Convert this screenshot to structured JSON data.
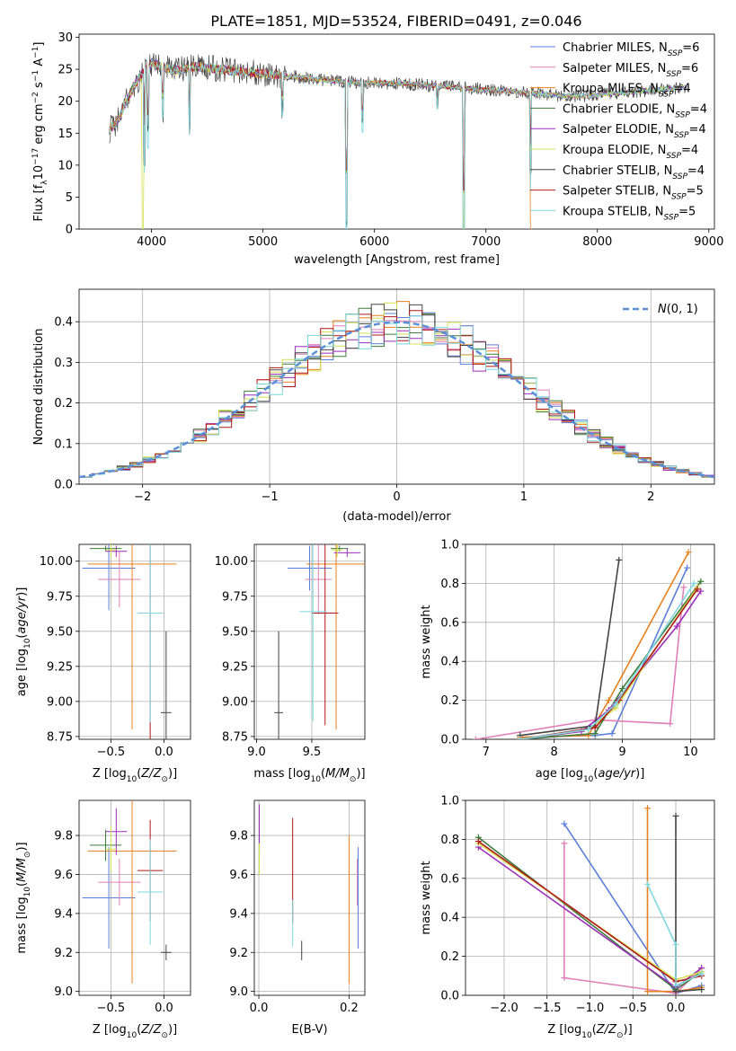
{
  "colors": [
    "#5b7fd8",
    "#e07fba",
    "#e7801e",
    "#3d7c3a",
    "#9b2fb8",
    "#d4e04f",
    "#444444",
    "#b01818",
    "#7ed8de"
  ],
  "figure_title": "PLATE=1851, MJD=53524, FIBERID=0491, z=0.046",
  "chart_data": [
    {
      "id": "spectrum",
      "type": "line",
      "title": "PLATE=1851, MJD=53524, FIBERID=0491, z=0.046",
      "xlabel": "wavelength [Angstrom, rest frame]",
      "ylabel": "Flux [f_λ 10^-17 erg cm^-2 s^-1 A^-1]",
      "xlim": [
        3350,
        9050
      ],
      "ylim": [
        0,
        30.5
      ],
      "xticks": [
        "4000",
        "5000",
        "6000",
        "7000",
        "8000",
        "9000"
      ],
      "yticks": [
        "0",
        "5",
        "10",
        "15",
        "20",
        "25",
        "30"
      ],
      "continuum_x": [
        3620,
        3700,
        3800,
        3900,
        4000,
        4100,
        4200,
        4400,
        4600,
        4800,
        5000,
        5200,
        5400,
        5600,
        5800,
        6000,
        6200,
        6400,
        6600,
        6800,
        7000,
        7200,
        7400,
        7600,
        7800,
        8000,
        8200,
        8400,
        8600,
        8800
      ],
      "continuum_y": [
        15.5,
        17,
        21,
        24,
        26,
        25.3,
        24.8,
        25.4,
        25,
        24.6,
        24.3,
        24,
        23.6,
        23.2,
        23,
        22.9,
        22.8,
        22.6,
        22.3,
        22.1,
        21.8,
        21.6,
        21.3,
        21,
        20.8,
        21,
        21.3,
        21.6,
        21.9,
        22.2
      ],
      "absorption_dips": [
        [
          3934,
          12
        ],
        [
          3969,
          10
        ],
        [
          4102,
          6
        ],
        [
          4340,
          8
        ],
        [
          5175,
          5
        ],
        [
          5750,
          20
        ],
        [
          5890,
          6
        ],
        [
          6563,
          3
        ],
        [
          6800,
          23
        ],
        [
          7400,
          12
        ]
      ],
      "legend": [
        {
          "imf": "Chabrier",
          "lib": "MILES",
          "n": "6"
        },
        {
          "imf": "Salpeter",
          "lib": "MILES",
          "n": "6"
        },
        {
          "imf": "Kroupa",
          "lib": "MILES",
          "n": "4"
        },
        {
          "imf": "Chabrier",
          "lib": "ELODIE",
          "n": "4"
        },
        {
          "imf": "Salpeter",
          "lib": "ELODIE",
          "n": "4"
        },
        {
          "imf": "Kroupa",
          "lib": "ELODIE",
          "n": "4"
        },
        {
          "imf": "Chabrier",
          "lib": "STELIB",
          "n": "4"
        },
        {
          "imf": "Salpeter",
          "lib": "STELIB",
          "n": "5"
        },
        {
          "imf": "Kroupa",
          "lib": "STELIB",
          "n": "5"
        }
      ],
      "legend_placement": "upper-right"
    },
    {
      "id": "residuals",
      "type": "histogram",
      "xlabel": "(data-model)/error",
      "ylabel": "Normed distribution",
      "xlim": [
        -2.5,
        2.5
      ],
      "ylim": [
        0,
        0.48
      ],
      "xticks": [
        "-2",
        "-1",
        "0",
        "1",
        "2"
      ],
      "yticks": [
        "0.0",
        "0.1",
        "0.2",
        "0.3",
        "0.4"
      ],
      "bin_width": 0.1,
      "reference_curve": "N(0,1)",
      "legend_placement": "upper-right",
      "grid": true
    },
    {
      "id": "age_vs_Z",
      "type": "errorbar",
      "xlabel": "Z [log10(Z/Z_sun)]",
      "ylabel": "age [log10(age/yr)]",
      "xlim": [
        -0.8,
        0.25
      ],
      "ylim": [
        8.73,
        10.12
      ],
      "xticks": [
        "-0.5",
        "0.0"
      ],
      "yticks": [
        "8.75",
        "9.00",
        "9.25",
        "9.50",
        "9.75",
        "10.00"
      ],
      "points": [
        {
          "x": -0.52,
          "y": 9.95,
          "xerr": 0.25,
          "yerr": 0.3
        },
        {
          "x": -0.42,
          "y": 9.87,
          "xerr": 0.2,
          "yerr": 0.2
        },
        {
          "x": -0.3,
          "y": 9.98,
          "xerr": 0.42,
          "yerr": 1.18
        },
        {
          "x": -0.55,
          "y": 10.09,
          "xerr": 0.15,
          "yerr": 0.02
        },
        {
          "x": -0.45,
          "y": 10.07,
          "xerr": 0.1,
          "yerr": 0.04
        },
        {
          "x": -0.5,
          "y": 10.08,
          "xerr": 0.05,
          "yerr": 0.05
        },
        {
          "x": 0.02,
          "y": 8.92,
          "xerr": 0.05,
          "yerr": 0.58
        },
        {
          "x": -0.13,
          "y": 9.63,
          "xerr": 0.12,
          "yerr": 0.9
        },
        {
          "x": -0.13,
          "y": 9.63,
          "xerr": 0.12,
          "yerr": 0.78
        }
      ]
    },
    {
      "id": "age_vs_mass",
      "type": "errorbar",
      "xlabel": "mass [log10(M/M_sun)]",
      "ylabel": "",
      "xlim": [
        8.98,
        9.98
      ],
      "ylim": [
        8.73,
        10.12
      ],
      "xticks": [
        "9.0",
        "9.5"
      ],
      "yticks": [
        "8.75",
        "9.00",
        "9.25",
        "9.50",
        "9.75",
        "10.00"
      ],
      "points": [
        {
          "x": 9.48,
          "y": 9.95,
          "xerr": 0.2,
          "yerr": 0.16
        },
        {
          "x": 9.56,
          "y": 9.87,
          "xerr": 0.12,
          "yerr": 0.25
        },
        {
          "x": 9.72,
          "y": 9.98,
          "xerr": 0.27,
          "yerr": 1.18
        },
        {
          "x": 9.75,
          "y": 10.09,
          "xerr": 0.08,
          "yerr": 0.02
        },
        {
          "x": 9.82,
          "y": 10.06,
          "xerr": 0.12,
          "yerr": 0.03
        },
        {
          "x": 9.73,
          "y": 10.08,
          "xerr": 0.05,
          "yerr": 0.05
        },
        {
          "x": 9.2,
          "y": 8.92,
          "xerr": 0.04,
          "yerr": 0.58
        },
        {
          "x": 9.62,
          "y": 9.63,
          "xerr": 0.12,
          "yerr": 0.8
        },
        {
          "x": 9.51,
          "y": 9.64,
          "xerr": 0.12,
          "yerr": 0.78
        }
      ]
    },
    {
      "id": "weight_vs_age",
      "type": "line",
      "xlabel": "age [log10(age/yr)]",
      "ylabel": "mass weight",
      "xlim": [
        6.7,
        10.35
      ],
      "ylim": [
        0,
        1.0
      ],
      "xticks": [
        "7",
        "8",
        "9",
        "10"
      ],
      "yticks": [
        "0.0",
        "0.2",
        "0.4",
        "0.6",
        "0.8",
        "1.0"
      ],
      "series": [
        {
          "x": [
            7.5,
            8.6,
            8.85,
            9.95
          ],
          "y": [
            0.01,
            0.02,
            0.03,
            0.88
          ]
        },
        {
          "x": 6.85,
          "xs": [
            6.85,
            8.6,
            9.7,
            9.9
          ],
          "ys": [
            0.0,
            0.1,
            0.08,
            0.78
          ]
        },
        {
          "xs": [
            7.5,
            8.5,
            8.8,
            9.97
          ],
          "ys": [
            0.01,
            0.02,
            0.2,
            0.96
          ]
        },
        {
          "xs": [
            7.5,
            8.6,
            9.0,
            10.15
          ],
          "ys": [
            0.0,
            0.03,
            0.26,
            0.81
          ]
        },
        {
          "xs": [
            7.5,
            8.4,
            8.8,
            9.8,
            10.15
          ],
          "ys": [
            0.0,
            0.04,
            0.15,
            0.58,
            0.76
          ]
        },
        {
          "xs": [
            7.5,
            8.5,
            8.9,
            10.1
          ],
          "ys": [
            0.0,
            0.05,
            0.16,
            0.78
          ]
        },
        {
          "xs": [
            7.5,
            8.6,
            8.95
          ],
          "ys": [
            0.02,
            0.07,
            0.92
          ]
        },
        {
          "xs": [
            7.5,
            8.6,
            8.95,
            10.1
          ],
          "ys": [
            0.0,
            0.06,
            0.2,
            0.77
          ]
        },
        {
          "xs": [
            7.5,
            8.5,
            8.9,
            10.05
          ],
          "ys": [
            0.0,
            0.05,
            0.18,
            0.8
          ]
        }
      ]
    },
    {
      "id": "mass_vs_Z",
      "type": "errorbar",
      "xlabel": "Z [log10(Z/Z_sun)]",
      "ylabel": "mass [log10(M/M_sun)]",
      "xlim": [
        -0.8,
        0.25
      ],
      "ylim": [
        8.98,
        9.98
      ],
      "xticks": [
        "-0.5",
        "0.0"
      ],
      "yticks": [
        "9.0",
        "9.2",
        "9.4",
        "9.6",
        "9.8"
      ],
      "points": [
        {
          "x": -0.52,
          "y": 9.48,
          "xerr": 0.25,
          "yerr": 0.26
        },
        {
          "x": -0.42,
          "y": 9.56,
          "xerr": 0.2,
          "yerr": 0.12
        },
        {
          "x": -0.3,
          "y": 9.72,
          "xerr": 0.42,
          "yerr": 0.68
        },
        {
          "x": -0.55,
          "y": 9.75,
          "xerr": 0.15,
          "yerr": 0.08
        },
        {
          "x": -0.45,
          "y": 9.82,
          "xerr": 0.1,
          "yerr": 0.12
        },
        {
          "x": -0.5,
          "y": 9.73,
          "xerr": 0.05,
          "yerr": 0.12
        },
        {
          "x": 0.02,
          "y": 9.2,
          "xerr": 0.05,
          "yerr": 0.04
        },
        {
          "x": -0.13,
          "y": 9.62,
          "xerr": 0.12,
          "yerr": 0.26
        },
        {
          "x": -0.13,
          "y": 9.51,
          "xerr": 0.12,
          "yerr": 0.27
        }
      ]
    },
    {
      "id": "mass_vs_ebv",
      "type": "errorbar",
      "xlabel": "E(B-V)",
      "ylabel": "",
      "xlim": [
        -0.01,
        0.235
      ],
      "ylim": [
        8.98,
        9.98
      ],
      "xticks": [
        "0.0",
        "0.2"
      ],
      "yticks": [
        "9.0",
        "9.2",
        "9.4",
        "9.6",
        "9.8"
      ],
      "points": [
        {
          "x": 0.22,
          "y": 9.48,
          "xerr": 0,
          "yerr": 0.26
        },
        {
          "x": 0.218,
          "y": 9.56,
          "xerr": 0,
          "yerr": 0.12
        },
        {
          "x": 0.2,
          "y": 9.42,
          "xerr": 0,
          "yerr": 0.38
        },
        {
          "x": 0.001,
          "y": 9.75,
          "xerr": 0,
          "yerr": 0.08
        },
        {
          "x": 0.001,
          "y": 9.84,
          "xerr": 0,
          "yerr": 0.12
        },
        {
          "x": 0.001,
          "y": 9.68,
          "xerr": 0,
          "yerr": 0.08
        },
        {
          "x": 0.095,
          "y": 9.21,
          "xerr": 0,
          "yerr": 0.05
        },
        {
          "x": 0.075,
          "y": 9.62,
          "xerr": 0,
          "yerr": 0.27
        },
        {
          "x": 0.075,
          "y": 9.35,
          "xerr": 0,
          "yerr": 0.12
        }
      ]
    },
    {
      "id": "weight_vs_Z",
      "type": "line",
      "xlabel": "Z [log10(Z/Z_sun)]",
      "ylabel": "mass weight",
      "xlim": [
        -2.45,
        0.45
      ],
      "ylim": [
        0,
        1.0
      ],
      "xticks": [
        "-2.0",
        "-1.5",
        "-1.0",
        "-0.5",
        "0.0"
      ],
      "yticks": [
        "0.0",
        "0.2",
        "0.4",
        "0.6",
        "0.8",
        "1.0"
      ],
      "series": [
        {
          "xs": [
            -1.3,
            0.0,
            0.3
          ],
          "ys": [
            0.88,
            0.01,
            0.05
          ]
        },
        {
          "xs": [
            -1.3,
            -1.3,
            0.0,
            0.3
          ],
          "ys": [
            0.78,
            0.09,
            0.01,
            0.14
          ]
        },
        {
          "xs": [
            -0.33,
            -0.33,
            0.0,
            0.3
          ],
          "ys": [
            0.96,
            0.02,
            0.02,
            0.04
          ]
        },
        {
          "xs": [
            -2.3,
            0.0,
            0.3
          ],
          "ys": [
            0.81,
            0.03,
            0.12
          ]
        },
        {
          "xs": [
            -2.3,
            0.0,
            0.3
          ],
          "ys": [
            0.76,
            0.04,
            0.14
          ]
        },
        {
          "xs": [
            -2.3,
            0.0,
            0.3
          ],
          "ys": [
            0.78,
            0.08,
            0.12
          ]
        },
        {
          "xs": [
            0.0,
            0.0,
            0.3
          ],
          "ys": [
            0.92,
            0.02,
            0.03
          ]
        },
        {
          "xs": [
            -2.3,
            0.0,
            0.3
          ],
          "ys": [
            0.79,
            0.07,
            0.1
          ]
        },
        {
          "xs": [
            -0.33,
            0.0,
            0.0,
            0.3
          ],
          "ys": [
            0.57,
            0.26,
            0.05,
            0.11
          ]
        }
      ]
    }
  ],
  "ncolors": "9"
}
